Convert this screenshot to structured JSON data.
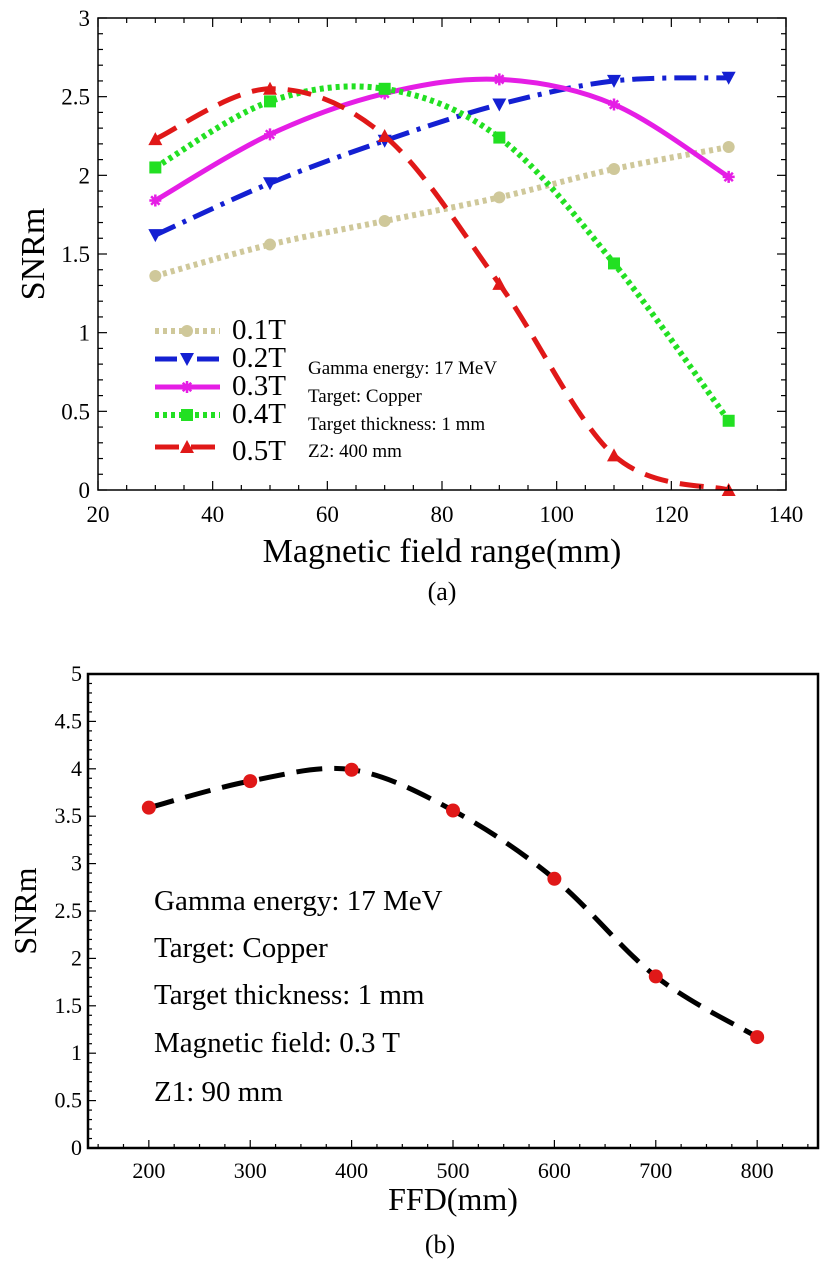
{
  "chart_data": [
    {
      "type": "line",
      "panel_label": "(a)",
      "xlabel": "Magnetic field range(mm)",
      "ylabel": "SNRm",
      "xlim": [
        20,
        140
      ],
      "ylim": [
        0,
        3
      ],
      "xticks": [
        "20",
        "40",
        "60",
        "80",
        "100",
        "120",
        "140"
      ],
      "yticks": [
        "0",
        "0.5",
        "1",
        "1.5",
        "2",
        "2.5",
        "3"
      ],
      "legend_position": "bottom-left",
      "x": [
        30,
        50,
        70,
        90,
        110,
        130
      ],
      "series": [
        {
          "name": "0.1T",
          "values": [
            1.36,
            1.56,
            1.71,
            1.86,
            2.04,
            2.18
          ],
          "color": "#cfc89a",
          "marker": "circle",
          "line_style": "dotted"
        },
        {
          "name": "0.2T",
          "values": [
            1.62,
            1.95,
            2.22,
            2.45,
            2.6,
            2.62
          ],
          "color": "#1420d2",
          "marker": "triangle-down",
          "line_style": "dash-dot"
        },
        {
          "name": "0.3T",
          "values": [
            1.84,
            2.26,
            2.52,
            2.61,
            2.45,
            1.99
          ],
          "color": "#e51ee5",
          "marker": "star",
          "line_style": "solid"
        },
        {
          "name": "0.4T",
          "values": [
            2.05,
            2.47,
            2.55,
            2.24,
            1.44,
            0.44
          ],
          "color": "#22e022",
          "marker": "square",
          "line_style": "dotted"
        },
        {
          "name": "0.5T",
          "values": [
            2.23,
            2.55,
            2.25,
            1.31,
            0.22,
            0.0
          ],
          "color": "#e01818",
          "marker": "triangle-up",
          "line_style": "dashed"
        }
      ],
      "annotations": [
        "Gamma energy: 17 MeV",
        "Target: Copper",
        "Target thickness: 1 mm",
        "Z2: 400 mm"
      ]
    },
    {
      "type": "line",
      "panel_label": "(b)",
      "xlabel": "FFD(mm)",
      "ylabel": "SNRm",
      "xlim": [
        140,
        860
      ],
      "ylim": [
        0,
        5
      ],
      "xticks": [
        "200",
        "300",
        "400",
        "500",
        "600",
        "700",
        "800"
      ],
      "yticks": [
        "0",
        "0.5",
        "1",
        "1.5",
        "2",
        "2.5",
        "3",
        "3.5",
        "4",
        "4.5",
        "5"
      ],
      "x": [
        200,
        300,
        400,
        500,
        600,
        700,
        800
      ],
      "series": [
        {
          "name": "SNRm",
          "values": [
            3.59,
            3.87,
            3.99,
            3.56,
            2.84,
            1.81,
            1.17
          ],
          "color": "#e01818",
          "line_color": "#000000",
          "marker": "circle",
          "line_style": "dashed"
        }
      ],
      "annotations": [
        "Gamma energy: 17 MeV",
        "Target: Copper",
        "Target thickness: 1 mm",
        "Magnetic field: 0.3 T",
        "Z1: 90 mm"
      ]
    }
  ]
}
